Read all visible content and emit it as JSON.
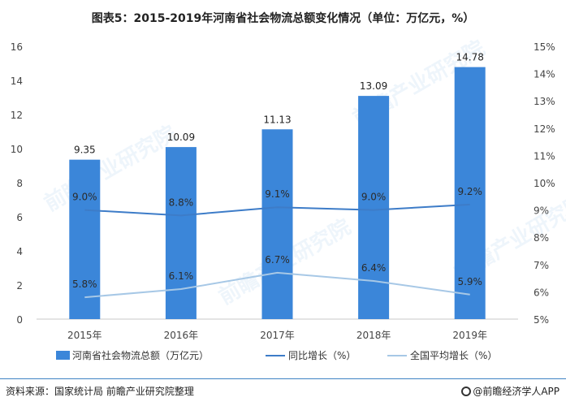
{
  "title": "图表5：2015-2019年河南省社会物流总额变化情况（单位：万亿元，%）",
  "source": "资料来源：国家统计局 前瞻产业研究院整理",
  "brand": "@前瞻经济学人APP",
  "watermark": "前瞻产业研究院",
  "colors": {
    "bar": "#3b86d9",
    "growth": "#3d7cc8",
    "national": "#a7c8e6",
    "footer": "#3e82c4"
  },
  "chart_data": {
    "type": "bar",
    "categories": [
      "2015年",
      "2016年",
      "2017年",
      "2018年",
      "2019年"
    ],
    "series": [
      {
        "name": "河南省社会物流总额（万亿元）",
        "type": "bar",
        "axis": "left",
        "values": [
          9.35,
          10.09,
          11.13,
          13.09,
          14.78
        ],
        "labels": [
          "9.35",
          "10.09",
          "11.13",
          "13.09",
          "14.78"
        ]
      },
      {
        "name": "同比增长（%）",
        "type": "line",
        "axis": "right",
        "values": [
          9.0,
          8.8,
          9.1,
          9.0,
          9.2
        ],
        "labels": [
          "9.0%",
          "8.8%",
          "9.1%",
          "9.0%",
          "9.2%"
        ]
      },
      {
        "name": "全国平均增长（%）",
        "type": "line",
        "axis": "right",
        "values": [
          5.8,
          6.1,
          6.7,
          6.4,
          5.9
        ],
        "labels": [
          "5.8%",
          "6.1%",
          "6.7%",
          "6.4%",
          "5.9%"
        ]
      }
    ],
    "y_left": {
      "ylim": [
        0,
        16
      ],
      "ticks": [
        "0",
        "2",
        "4",
        "6",
        "8",
        "10",
        "12",
        "14",
        "16"
      ]
    },
    "y_right": {
      "ylim": [
        5,
        15
      ],
      "ticks": [
        "5%",
        "6%",
        "7%",
        "8%",
        "9%",
        "10%",
        "11%",
        "12%",
        "13%",
        "14%",
        "15%"
      ]
    },
    "legend_position": "bottom",
    "grid": false
  }
}
